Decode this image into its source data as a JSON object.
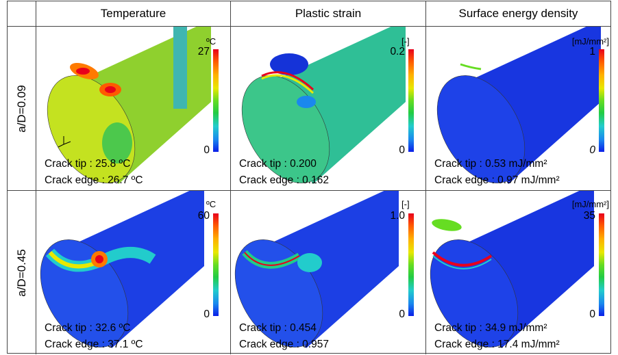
{
  "table": {
    "headers": [
      "Temperature",
      "Plastic strain",
      "Surface energy density"
    ],
    "rows": [
      {
        "label": "a/D=0.09",
        "cells": [
          {
            "unit": "ºC",
            "max": "27",
            "min": "0",
            "tip": "Crack tip : 25.8 ºC",
            "edge": "Crack edge : 26.7 ºC"
          },
          {
            "unit": "[-]",
            "max": "0.2",
            "min": "0",
            "tip": "Crack tip : 0.200",
            "edge": "Crack edge : 0.162"
          },
          {
            "unit": "[mJ/mm²]",
            "max": "1",
            "min": "0",
            "tip": "Crack tip : 0.53 mJ/mm²",
            "edge": "Crack edge : 0.97 mJ/mm²"
          }
        ]
      },
      {
        "label": "a/D=0.45",
        "cells": [
          {
            "unit": "ºC",
            "max": "60",
            "min": "0",
            "tip": "Crack tip : 32.6 ºC",
            "edge": "Crack edge : 37.1 ºC"
          },
          {
            "unit": "[-]",
            "max": "1.0",
            "min": "0",
            "tip": "Crack tip : 0.454",
            "edge": "Crack edge : 0.957"
          },
          {
            "unit": "[mJ/mm²]",
            "max": "35",
            "min": "0",
            "tip": "Crack tip : 34.9 mJ/mm²",
            "edge": "Crack edge : 17.4 mJ/mm²"
          }
        ]
      }
    ]
  }
}
